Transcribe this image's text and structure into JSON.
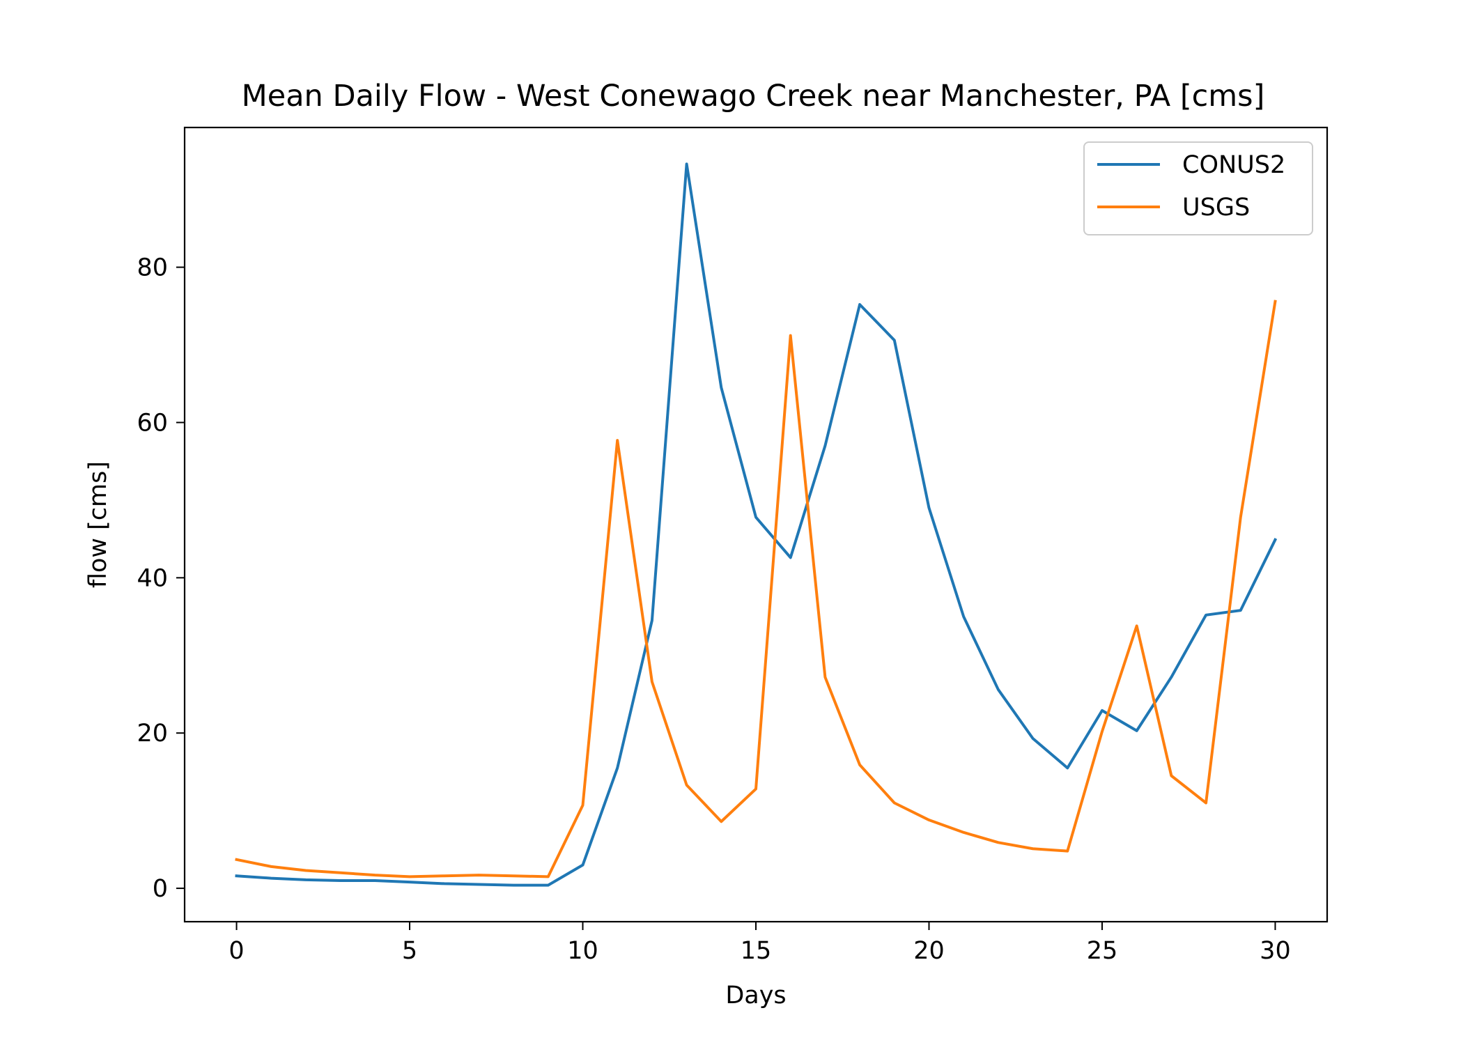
{
  "chart_data": {
    "type": "line",
    "title": "Mean Daily Flow - West Conewago Creek near Manchester, PA [cms]",
    "xlabel": "Days",
    "ylabel": "flow [cms]",
    "xlim": [
      -1.5,
      31.5
    ],
    "ylim": [
      -4.3,
      98.0
    ],
    "xticks": [
      0,
      5,
      10,
      15,
      20,
      25,
      30
    ],
    "yticks": [
      0,
      20,
      40,
      60,
      80
    ],
    "grid": false,
    "legend_position": "top-right",
    "x": [
      0,
      1,
      2,
      3,
      4,
      5,
      6,
      7,
      8,
      9,
      10,
      11,
      12,
      13,
      14,
      15,
      16,
      17,
      18,
      19,
      20,
      21,
      22,
      23,
      24,
      25,
      26,
      27,
      28,
      29,
      30
    ],
    "series": [
      {
        "name": "CONUS2",
        "color": "#1f77b4",
        "values": [
          1.6,
          1.3,
          1.1,
          1.0,
          1.0,
          0.8,
          0.6,
          0.5,
          0.4,
          0.4,
          3.0,
          15.5,
          34.5,
          93.3,
          64.5,
          47.8,
          42.6,
          57.0,
          75.2,
          70.6,
          49.0,
          35.0,
          25.6,
          19.3,
          15.5,
          22.9,
          20.3,
          27.2,
          35.2,
          35.8,
          44.9
        ]
      },
      {
        "name": "USGS",
        "color": "#ff7f0e",
        "values": [
          3.7,
          2.8,
          2.3,
          2.0,
          1.7,
          1.5,
          1.6,
          1.7,
          1.6,
          1.5,
          10.7,
          57.7,
          26.6,
          13.3,
          8.6,
          12.8,
          71.2,
          27.2,
          15.9,
          11.0,
          8.8,
          7.2,
          5.9,
          5.1,
          4.8,
          20.2,
          33.8,
          14.5,
          11.0,
          47.8,
          75.6
        ]
      }
    ]
  }
}
